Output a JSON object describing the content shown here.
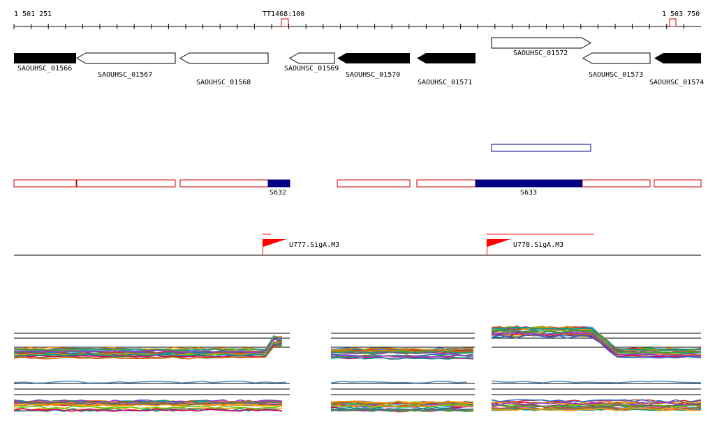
{
  "ruler": {
    "start_label": "1 501 251",
    "end_label": "1 503 750",
    "terminator_label": "TT1468:100"
  },
  "genes": [
    {
      "id": "SAOUHSC_01566",
      "strand": "-",
      "style": "filled"
    },
    {
      "id": "SAOUHSC_01567",
      "strand": "-",
      "style": "open"
    },
    {
      "id": "SAOUHSC_01568",
      "strand": "-",
      "style": "open"
    },
    {
      "id": "SAOUHSC_01569",
      "strand": "-",
      "style": "open"
    },
    {
      "id": "SAOUHSC_01570",
      "strand": "-",
      "style": "filled"
    },
    {
      "id": "SAOUHSC_01571",
      "strand": "-",
      "style": "filled"
    },
    {
      "id": "SAOUHSC_01572",
      "strand": "+",
      "style": "open"
    },
    {
      "id": "SAOUHSC_01573",
      "strand": "-",
      "style": "open"
    },
    {
      "id": "SAOUHSC_01574",
      "strand": "-",
      "style": "filled"
    }
  ],
  "segments": [
    {
      "id": "S632",
      "color": "#000080"
    },
    {
      "id": "S633",
      "color": "#000080"
    }
  ],
  "promoters": [
    {
      "id": "U777.SigA.M3",
      "color": "#ff0000"
    },
    {
      "id": "U778.SigA.M3",
      "color": "#ff0000"
    }
  ],
  "colors": {
    "gene_filled": "#000000",
    "gene_open": "#ffffff",
    "segment_outline": "#cc0000",
    "segment_fill": "#000080",
    "promoter": "#ff0000",
    "terminator": "#cc0000"
  }
}
